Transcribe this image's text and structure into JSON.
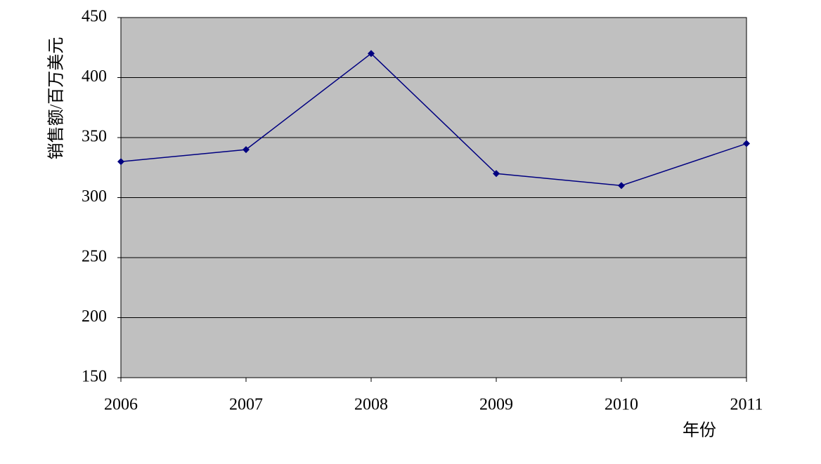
{
  "chart_data": {
    "type": "line",
    "y_label": "销售额/百万美元",
    "x_label": "年份",
    "categories": [
      "2006",
      "2007",
      "2008",
      "2009",
      "2010",
      "2011"
    ],
    "series": [
      {
        "name": "销售额",
        "color": "#000080",
        "values": [
          330,
          340,
          420,
          320,
          310,
          345
        ]
      }
    ],
    "ylim": [
      150,
      450
    ],
    "yticks": [
      150,
      200,
      250,
      300,
      350,
      400,
      450
    ],
    "grid": true,
    "plot_background": "#c0c0c0"
  }
}
